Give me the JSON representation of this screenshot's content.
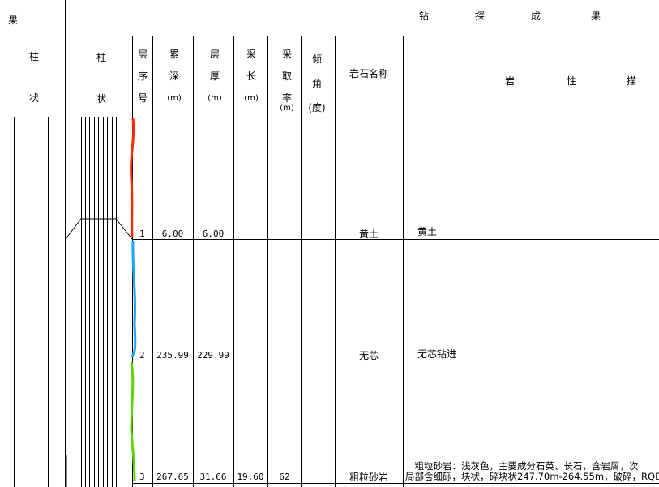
{
  "header": {
    "left_title": "果",
    "main_title": [
      "钻",
      "探",
      "成",
      "果"
    ]
  },
  "columns": {
    "col1": [
      "柱",
      "状"
    ],
    "col2": [
      "柱",
      "状"
    ],
    "layer_no": [
      "层",
      "序",
      "号"
    ],
    "cum_depth": [
      "累",
      "深",
      "(m)"
    ],
    "thickness": [
      "层",
      "厚",
      "(m)"
    ],
    "sample_len": [
      "采",
      "长",
      "(m)"
    ],
    "recovery": [
      "采",
      "取",
      "率",
      "(m)"
    ],
    "dip": [
      "倾",
      "角",
      "(度)"
    ],
    "rock_name": "岩石名称",
    "description": [
      "岩",
      "性",
      "描"
    ]
  },
  "rows": [
    {
      "no": "1",
      "depth": "6.00",
      "thickness": "6.00",
      "sample_len": "",
      "recovery": "",
      "rock": "黄土",
      "desc": [
        "黄土"
      ],
      "curve_color": "#ff2a00"
    },
    {
      "no": "2",
      "depth": "235.99",
      "thickness": "229.99",
      "sample_len": "",
      "recovery": "",
      "rock": "无芯",
      "desc": [
        "无芯钻进"
      ],
      "curve_color": "#1aa6ff"
    },
    {
      "no": "3",
      "depth": "267.65",
      "thickness": "31.66",
      "sample_len": "19.60",
      "recovery": "62",
      "rock": "粗粒砂岩",
      "desc": [
        "　粗粒砂岩：浅灰色，主要成分石英、长石，含岩屑，次",
        "局部含细砾，块状，碎块状247.70m-264.55m，破碎，RQD"
      ],
      "curve_color": "#5fd400"
    }
  ]
}
